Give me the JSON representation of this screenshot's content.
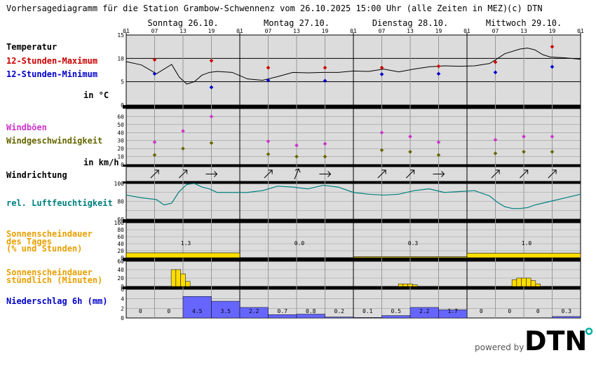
{
  "header": {
    "title": "Vorhersagediagramm für die Station Grambow-Schwennenz vom 26.10.2025 15:00 Uhr (alle Zeiten in MEZ)",
    "copyright": "(c) DTN"
  },
  "days": [
    "Sonntag 26.10.",
    "Montag 27.10.",
    "Dienstag 28.10.",
    "Mittwoch 29.10."
  ],
  "hour_ticks": [
    "01",
    "07",
    "13",
    "19",
    "01",
    "07",
    "13",
    "19",
    "01",
    "07",
    "13",
    "19",
    "01",
    "07",
    "13",
    "19",
    "01"
  ],
  "labels": {
    "temp_title": "Temperatur",
    "temp_max": "12-Stunden-Maximum",
    "temp_min": "12-Stunden-Minimum",
    "temp_unit": "in °C",
    "gust": "Windböen",
    "windspeed": "Windgeschwindigkeit",
    "wind_unit": "in km/h",
    "winddir": "Windrichtung",
    "humidity": "rel. Luftfeuchtigkeit",
    "sun_day_1": "Sonnenscheindauer",
    "sun_day_2": "des Tages",
    "sun_day_3": "(% und Stunden)",
    "sun_hour_1": "Sonnenscheindauer",
    "sun_hour_2": "stündlich (Minuten)",
    "precip": "Niederschlag 6h (mm)"
  },
  "colors": {
    "panel_bg": "#dcdcdc",
    "temp_max": "#cc0000",
    "temp_min": "#0000cc",
    "gust": "#cc33cc",
    "windspeed": "#666600",
    "humidity_line": "#008080",
    "humidity_label": "#008080",
    "sun": "#ffdd00",
    "sun_label": "#e8a000",
    "precip": "#6666ff",
    "precip_label": "#0000cc"
  },
  "branding": {
    "powered_by": "powered by",
    "logo": "DTN"
  },
  "chart_data": [
    {
      "type": "line",
      "title": "Temperatur",
      "ylabel": "in °C",
      "ylim": [
        0,
        15
      ],
      "yticks": [
        0,
        5,
        10,
        15
      ],
      "x_hours": [
        0,
        4,
        8,
        12,
        14,
        16,
        18,
        20,
        22,
        24,
        28,
        32,
        36,
        40,
        44,
        48,
        52,
        56,
        60,
        64,
        68,
        72,
        76,
        80,
        84,
        88,
        92,
        96,
        100,
        104,
        106,
        108,
        110,
        112,
        116,
        120
      ],
      "temperature": [
        9.3,
        8.6,
        6.7,
        8.7,
        6.0,
        4.5,
        5.0,
        6.4,
        7.0,
        7.2,
        7.0,
        5.6,
        5.3,
        6.1,
        7.0,
        6.9,
        7.0,
        7.0,
        7.3,
        7.2,
        7.7,
        7.1,
        7.7,
        8.2,
        8.4,
        8.3,
        8.4,
        8.9,
        11.0,
        12.0,
        12.2,
        11.8,
        10.8,
        10.3,
        10.1,
        9.8
      ],
      "max_points": [
        {
          "x_hour": 6,
          "value": 9.7
        },
        {
          "x_hour": 18,
          "value": 9.5
        },
        {
          "x_hour": 30,
          "value": 8.0
        },
        {
          "x_hour": 42,
          "value": 8.0
        },
        {
          "x_hour": 54,
          "value": 8.0
        },
        {
          "x_hour": 66,
          "value": 8.3
        },
        {
          "x_hour": 78,
          "value": 9.2
        },
        {
          "x_hour": 90,
          "value": 12.5
        }
      ],
      "min_points": [
        {
          "x_hour": 6,
          "value": 6.7
        },
        {
          "x_hour": 18,
          "value": 3.8
        },
        {
          "x_hour": 30,
          "value": 5.3
        },
        {
          "x_hour": 42,
          "value": 5.2
        },
        {
          "x_hour": 54,
          "value": 6.6
        },
        {
          "x_hour": 66,
          "value": 6.7
        },
        {
          "x_hour": 78,
          "value": 7.0
        },
        {
          "x_hour": 90,
          "value": 8.2
        }
      ]
    },
    {
      "type": "scatter",
      "title": "Windböen / Windgeschwindigkeit",
      "ylabel": "in km/h",
      "ylim": [
        0,
        70
      ],
      "yticks": [
        0,
        10,
        20,
        30,
        40,
        50,
        60
      ],
      "x_hours": [
        6,
        12,
        18,
        30,
        36,
        42,
        54,
        60,
        66,
        78,
        84,
        90
      ],
      "gusts": [
        28,
        42,
        60,
        29,
        24,
        26,
        40,
        35,
        28,
        31,
        35,
        35
      ],
      "windspeed": [
        12,
        20,
        27,
        13,
        10,
        10,
        18,
        16,
        12,
        14,
        16,
        16
      ]
    },
    {
      "type": "table",
      "title": "Windrichtung",
      "x_hours": [
        6,
        12,
        18,
        30,
        36,
        42,
        54,
        60,
        66,
        78,
        84,
        90
      ],
      "directions": [
        "SW",
        "SW",
        "W",
        "SW",
        "SSW",
        "W",
        "SW",
        "SW",
        "W",
        "SW",
        "SW",
        "SW"
      ]
    },
    {
      "type": "line",
      "title": "rel. Luftfeuchtigkeit",
      "ylim": [
        60,
        100
      ],
      "yticks": [
        60,
        80,
        100
      ],
      "x_hours": [
        0,
        4,
        8,
        10,
        12,
        14,
        16,
        18,
        20,
        22,
        24,
        28,
        32,
        36,
        40,
        44,
        48,
        52,
        56,
        60,
        64,
        68,
        72,
        76,
        80,
        84,
        88,
        92,
        96,
        98,
        100,
        102,
        104,
        106,
        108,
        112,
        116,
        120
      ],
      "humidity": [
        87,
        84,
        82,
        76,
        78,
        91,
        99,
        100,
        96,
        94,
        90,
        90,
        90,
        92,
        97,
        96,
        94,
        98,
        96,
        90,
        88,
        87,
        88,
        92,
        94,
        90,
        91,
        92,
        86,
        79,
        74,
        72,
        72,
        73,
        76,
        80,
        84,
        88
      ]
    },
    {
      "type": "bar",
      "title": "Sonnenscheindauer des Tages (% und Stunden)",
      "ylim": [
        0,
        100
      ],
      "yticks": [
        0,
        20,
        40,
        60,
        80,
        100
      ],
      "categories": [
        "Sonntag 26.10.",
        "Montag 27.10.",
        "Dienstag 28.10.",
        "Mittwoch 29.10."
      ],
      "percent": [
        14,
        0,
        3,
        13
      ],
      "hours_text": [
        "1.3",
        "0.0",
        "0.3",
        "1.0"
      ]
    },
    {
      "type": "bar",
      "title": "Sonnenscheindauer stündlich (Minuten)",
      "ylim": [
        0,
        60
      ],
      "yticks": [
        0,
        20,
        40,
        60
      ],
      "x_hours": [
        9,
        10,
        11,
        12,
        13,
        14,
        15,
        16,
        17,
        33,
        34,
        35,
        36,
        37,
        38,
        39,
        40,
        57,
        58,
        59,
        60,
        61,
        62,
        63,
        64,
        81,
        82,
        83,
        84,
        85,
        86,
        87,
        88,
        89
      ],
      "minutes": [
        0,
        40,
        40,
        30,
        12,
        0,
        0,
        0,
        0,
        0,
        0,
        0,
        0,
        0,
        0,
        0,
        0,
        0,
        6,
        6,
        6,
        4,
        0,
        0,
        0,
        0,
        16,
        20,
        20,
        20,
        14,
        6,
        0,
        0
      ]
    },
    {
      "type": "bar",
      "title": "Niederschlag 6h (mm)",
      "ylim": [
        0,
        6
      ],
      "yticks": [
        0,
        2,
        4,
        6
      ],
      "categories": [
        "01-07",
        "07-13",
        "13-19",
        "19-01",
        "01-07",
        "07-13",
        "13-19",
        "19-01",
        "01-07",
        "07-13",
        "13-19",
        "19-01",
        "01-07",
        "07-13",
        "13-19",
        "19-01"
      ],
      "values": [
        0,
        0,
        4.5,
        3.5,
        2.2,
        0.7,
        0.8,
        0.2,
        0.1,
        0.5,
        2.2,
        1.7,
        0,
        0,
        0,
        0.3
      ],
      "value_labels": [
        "0",
        "0",
        "4.5",
        "3.5",
        "2.2",
        "0.7",
        "0.8",
        "0.2",
        "0.1",
        "0.5",
        "2.2",
        "1.7",
        "0",
        "0",
        "0",
        "0.3"
      ]
    }
  ]
}
